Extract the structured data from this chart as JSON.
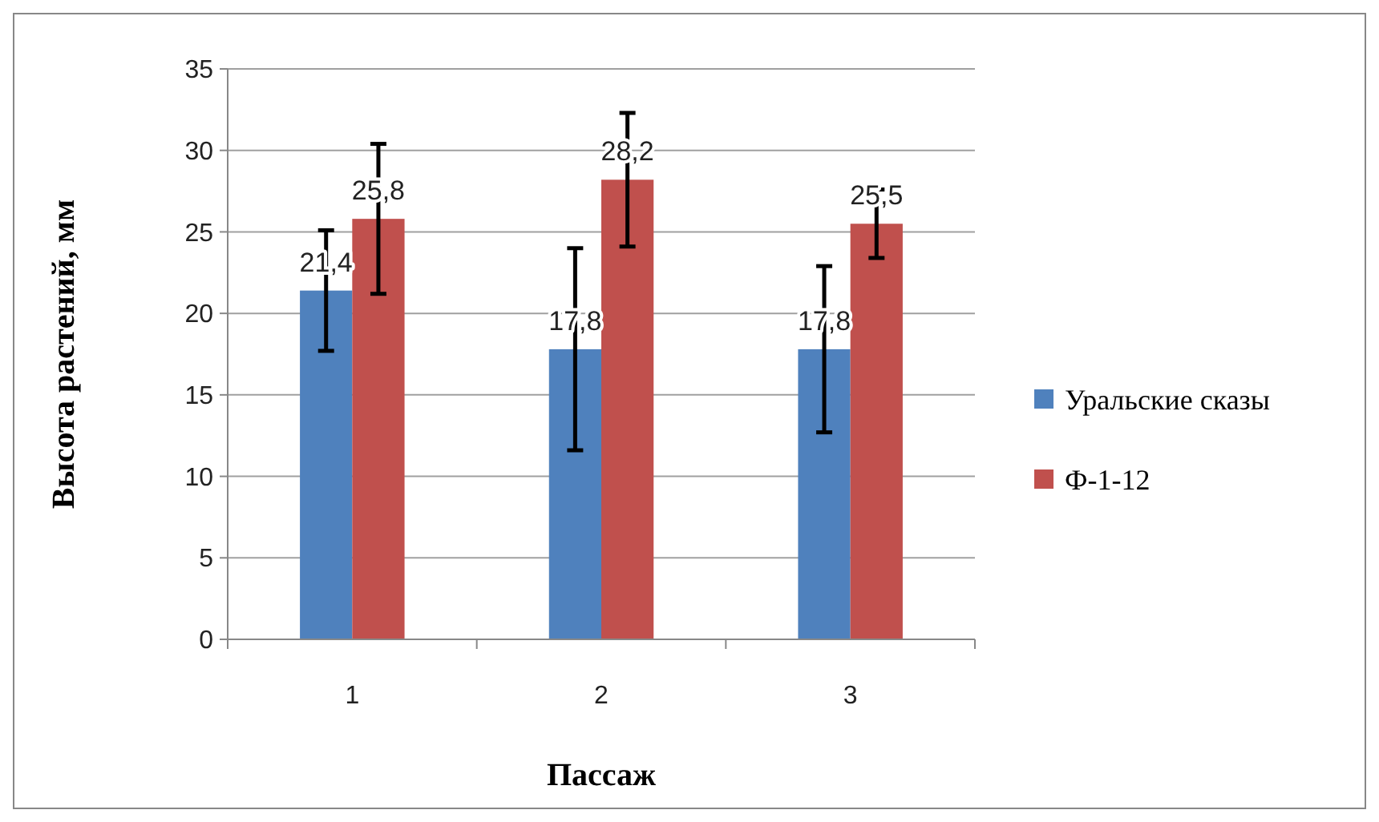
{
  "chart_data": {
    "type": "bar",
    "xlabel": "Пассаж",
    "ylabel": "Высота растений, мм",
    "categories": [
      "1",
      "2",
      "3"
    ],
    "series": [
      {
        "name": "Уральские сказы",
        "color": "#4f81bd",
        "values": [
          21.4,
          17.8,
          17.8
        ],
        "value_labels": [
          "21,4",
          "17,8",
          "17,8"
        ],
        "errors": [
          3.7,
          6.2,
          5.1
        ]
      },
      {
        "name": "Ф-1-12",
        "color": "#c0504d",
        "values": [
          25.8,
          28.2,
          25.5
        ],
        "value_labels": [
          "25,8",
          "28,2",
          "25,5"
        ],
        "errors": [
          4.6,
          4.1,
          2.1
        ]
      }
    ],
    "ylim": [
      0,
      35
    ],
    "yticks": [
      0,
      5,
      10,
      15,
      20,
      25,
      30,
      35
    ],
    "grid": "y",
    "legend": "right"
  }
}
